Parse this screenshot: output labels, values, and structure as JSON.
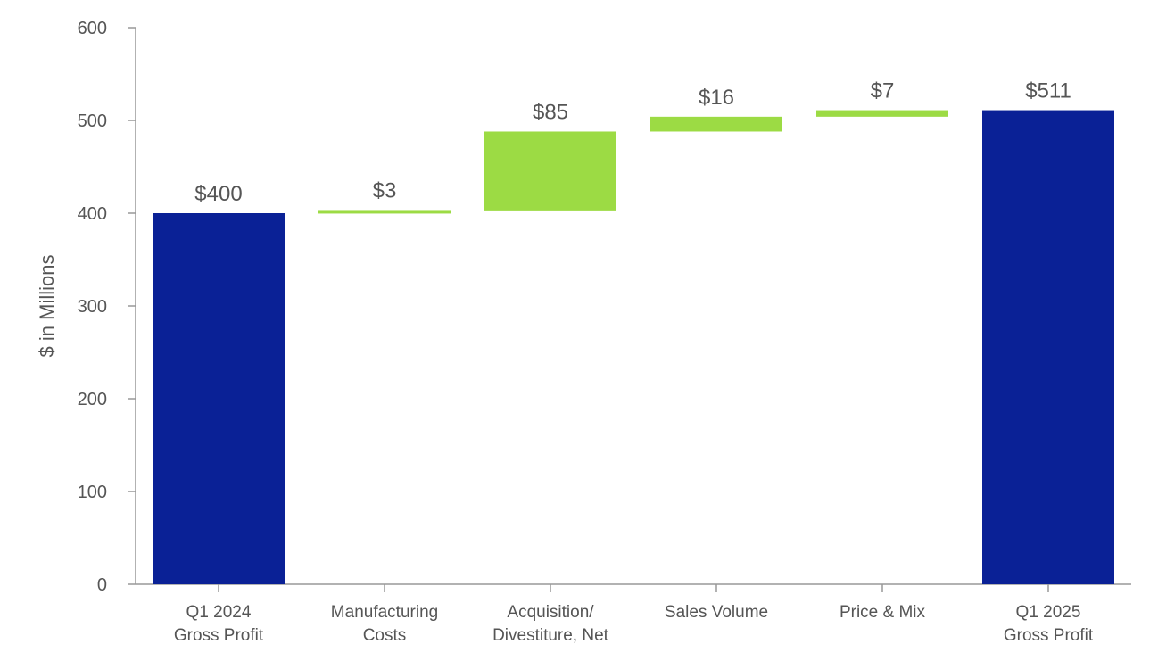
{
  "chart_data": {
    "type": "bar",
    "subtype": "waterfall",
    "title": "",
    "xlabel": "",
    "ylabel": "$ in Millions",
    "ylim": [
      0,
      600
    ],
    "yticks": [
      "0",
      "100",
      "200",
      "300",
      "400",
      "500",
      "600"
    ],
    "grid": false,
    "legend": "none",
    "categories": [
      [
        "Q1 2024",
        "Gross Profit"
      ],
      [
        "Manufacturing",
        "Costs"
      ],
      [
        "Acquisition/",
        "Divestiture, Net"
      ],
      [
        "Sales Volume"
      ],
      [
        "Price & Mix"
      ],
      [
        "Q1 2025",
        "Gross Profit"
      ]
    ],
    "bars": [
      {
        "kind": "total",
        "start": 0,
        "end": 400,
        "value": 400,
        "label": "$400"
      },
      {
        "kind": "increase",
        "start": 400,
        "end": 403,
        "value": 3,
        "label": "$3"
      },
      {
        "kind": "increase",
        "start": 403,
        "end": 488,
        "value": 85,
        "label": "$85"
      },
      {
        "kind": "increase",
        "start": 488,
        "end": 504,
        "value": 16,
        "label": "$16"
      },
      {
        "kind": "increase",
        "start": 504,
        "end": 511,
        "value": 7,
        "label": "$7"
      },
      {
        "kind": "total",
        "start": 0,
        "end": 511,
        "value": 511,
        "label": "$511"
      }
    ],
    "colors": {
      "total": "#0a2196",
      "increase": "#9cdb44",
      "axis": "#999999",
      "text": "#555555"
    }
  }
}
